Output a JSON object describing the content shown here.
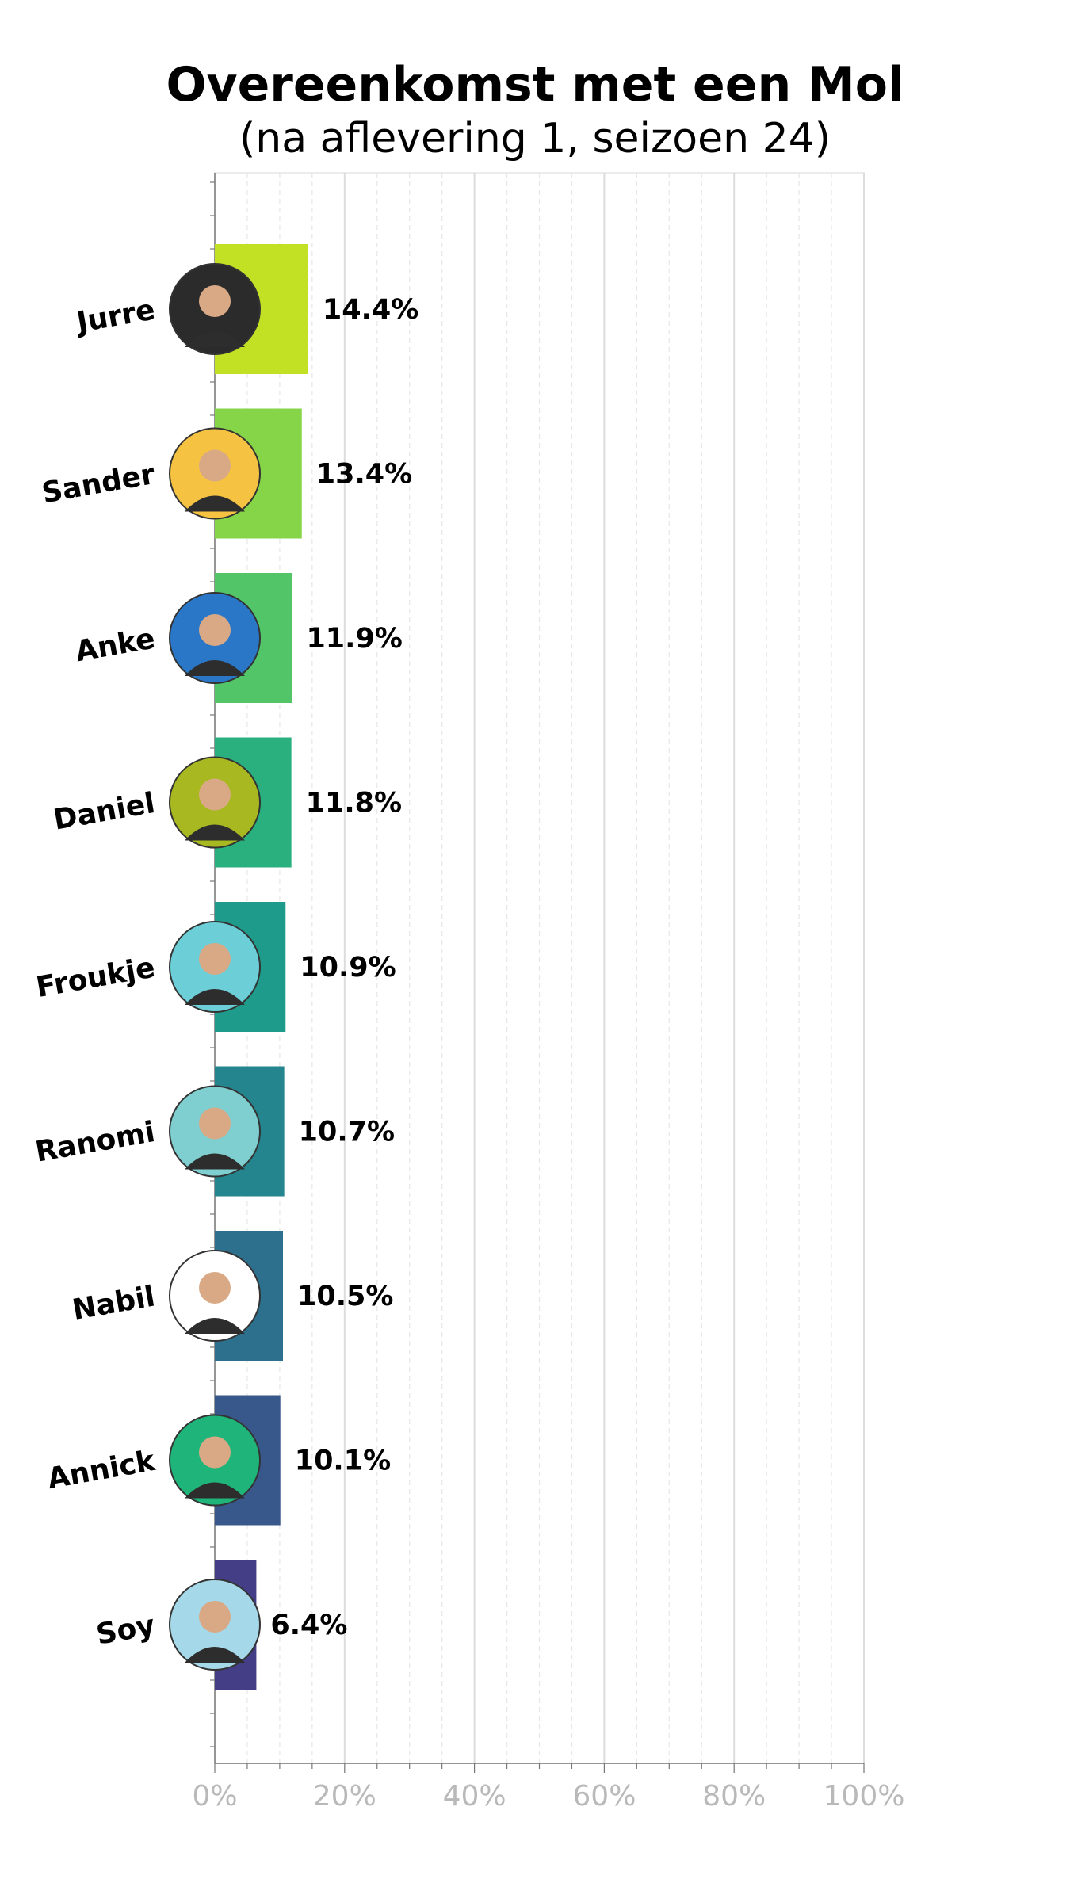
{
  "chart_data": {
    "type": "bar",
    "orientation": "horizontal",
    "title": "Overeenkomst met een Mol",
    "subtitle": "(na aflevering 1, seizoen 24)",
    "xlabel": "",
    "ylabel": "",
    "xlim": [
      0,
      100
    ],
    "x_ticks": [
      0,
      20,
      40,
      60,
      80,
      100
    ],
    "x_tick_labels": [
      "0%",
      "20%",
      "40%",
      "60%",
      "80%",
      "100%"
    ],
    "grid": true,
    "categories": [
      "Jurre",
      "Sander",
      "Anke",
      "Daniel",
      "Froukje",
      "Ranomi",
      "Nabil",
      "Annick",
      "Soy"
    ],
    "values": [
      14.4,
      13.4,
      11.9,
      11.8,
      10.9,
      10.7,
      10.5,
      10.1,
      6.4
    ],
    "value_labels": [
      "14.4%",
      "13.4%",
      "11.9%",
      "11.8%",
      "10.9%",
      "10.7%",
      "10.5%",
      "10.1%",
      "6.4%"
    ],
    "bar_colors": [
      "#c2e124",
      "#86d549",
      "#52c569",
      "#2ab07f",
      "#1e9b8a",
      "#25858e",
      "#2d708e",
      "#38588c",
      "#433e85"
    ],
    "avatar_colors": [
      "#2b2b2b",
      "#f5c242",
      "#2a77c8",
      "#a8b820",
      "#6ccfd8",
      "#7fcfd0",
      "#ffffff",
      "#1fb57a",
      "#a5d8e8"
    ]
  }
}
